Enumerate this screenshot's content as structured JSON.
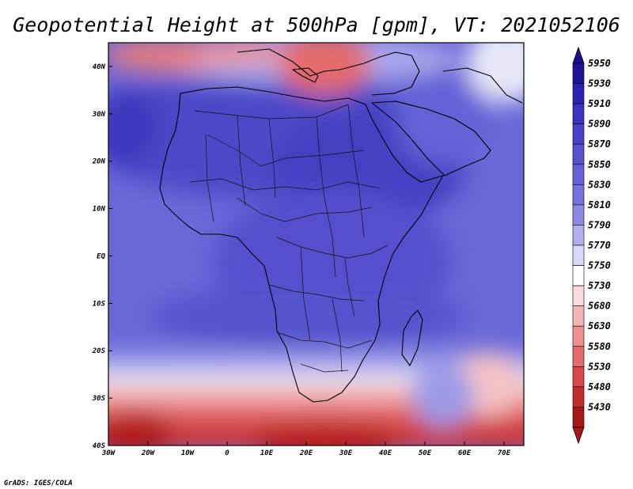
{
  "title": "Geopotential Height at 500hPa [gpm], VT: 2021052106",
  "credit": "GrADS: IGES/COLA",
  "map": {
    "lon_range": [
      -30,
      75
    ],
    "lat_range": [
      -40,
      45
    ],
    "lon_ticks": [
      {
        "value": -30,
        "label": "30W"
      },
      {
        "value": -20,
        "label": "20W"
      },
      {
        "value": -10,
        "label": "10W"
      },
      {
        "value": 0,
        "label": "0"
      },
      {
        "value": 10,
        "label": "10E"
      },
      {
        "value": 20,
        "label": "20E"
      },
      {
        "value": 30,
        "label": "30E"
      },
      {
        "value": 40,
        "label": "40E"
      },
      {
        "value": 50,
        "label": "50E"
      },
      {
        "value": 60,
        "label": "60E"
      },
      {
        "value": 70,
        "label": "70E"
      }
    ],
    "lat_ticks": [
      {
        "value": 40,
        "label": "40N"
      },
      {
        "value": 30,
        "label": "30N"
      },
      {
        "value": 20,
        "label": "20N"
      },
      {
        "value": 10,
        "label": "10N"
      },
      {
        "value": 0,
        "label": "EQ"
      },
      {
        "value": -10,
        "label": "10S"
      },
      {
        "value": -20,
        "label": "20S"
      },
      {
        "value": -30,
        "label": "30S"
      },
      {
        "value": -40,
        "label": "40S"
      }
    ]
  },
  "colorbar": {
    "labels": [
      "5950",
      "5930",
      "5910",
      "5890",
      "5870",
      "5850",
      "5830",
      "5810",
      "5790",
      "5770",
      "5750",
      "5730",
      "5680",
      "5630",
      "5580",
      "5530",
      "5480",
      "5430"
    ],
    "colors": [
      "#1e1496",
      "#2a22b0",
      "#3a34c0",
      "#4842c8",
      "#5652d0",
      "#6462d6",
      "#7472dc",
      "#8c8ae4",
      "#b0b0ee",
      "#d8d8f8",
      "#ffffff",
      "#fadada",
      "#f3b4b4",
      "#ec9090",
      "#e46c6c",
      "#d84848",
      "#c42c2c",
      "#a81616"
    ],
    "top_color": "#1a0f8a",
    "bottom_color": "#a81616"
  }
}
